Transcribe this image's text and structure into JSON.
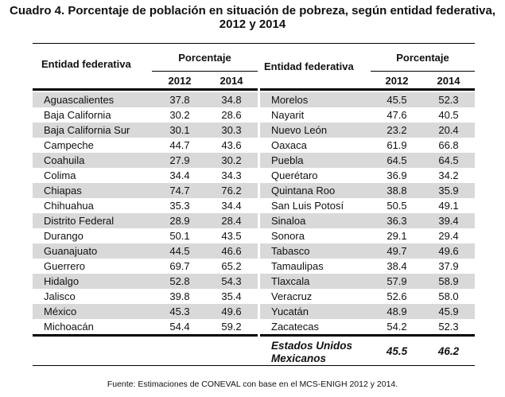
{
  "title": {
    "line1": "Cuadro 4. Porcentaje de población en situación de pobreza, según entidad federativa,",
    "line2": "2012 y 2014"
  },
  "headers": {
    "entity": "Entidad federativa",
    "group": "Porcentaje",
    "year1": "2012",
    "year2": "2014"
  },
  "left_rows": [
    {
      "entity": "Aguascalientes",
      "y2012": "37.8",
      "y2014": "34.8"
    },
    {
      "entity": "Baja California",
      "y2012": "30.2",
      "y2014": "28.6"
    },
    {
      "entity": "Baja California Sur",
      "y2012": "30.1",
      "y2014": "30.3"
    },
    {
      "entity": "Campeche",
      "y2012": "44.7",
      "y2014": "43.6"
    },
    {
      "entity": "Coahuila",
      "y2012": "27.9",
      "y2014": "30.2"
    },
    {
      "entity": "Colima",
      "y2012": "34.4",
      "y2014": "34.3"
    },
    {
      "entity": "Chiapas",
      "y2012": "74.7",
      "y2014": "76.2"
    },
    {
      "entity": "Chihuahua",
      "y2012": "35.3",
      "y2014": "34.4"
    },
    {
      "entity": "Distrito Federal",
      "y2012": "28.9",
      "y2014": "28.4"
    },
    {
      "entity": "Durango",
      "y2012": "50.1",
      "y2014": "43.5"
    },
    {
      "entity": "Guanajuato",
      "y2012": "44.5",
      "y2014": "46.6"
    },
    {
      "entity": "Guerrero",
      "y2012": "69.7",
      "y2014": "65.2"
    },
    {
      "entity": "Hidalgo",
      "y2012": "52.8",
      "y2014": "54.3"
    },
    {
      "entity": "Jalisco",
      "y2012": "39.8",
      "y2014": "35.4"
    },
    {
      "entity": "México",
      "y2012": "45.3",
      "y2014": "49.6"
    },
    {
      "entity": "Michoacán",
      "y2012": "54.4",
      "y2014": "59.2"
    }
  ],
  "right_rows": [
    {
      "entity": "Morelos",
      "y2012": "45.5",
      "y2014": "52.3"
    },
    {
      "entity": "Nayarit",
      "y2012": "47.6",
      "y2014": "40.5"
    },
    {
      "entity": "Nuevo León",
      "y2012": "23.2",
      "y2014": "20.4"
    },
    {
      "entity": "Oaxaca",
      "y2012": "61.9",
      "y2014": "66.8"
    },
    {
      "entity": "Puebla",
      "y2012": "64.5",
      "y2014": "64.5"
    },
    {
      "entity": "Querétaro",
      "y2012": "36.9",
      "y2014": "34.2"
    },
    {
      "entity": "Quintana Roo",
      "y2012": "38.8",
      "y2014": "35.9"
    },
    {
      "entity": "San Luis Potosí",
      "y2012": "50.5",
      "y2014": "49.1"
    },
    {
      "entity": "Sinaloa",
      "y2012": "36.3",
      "y2014": "39.4"
    },
    {
      "entity": "Sonora",
      "y2012": "29.1",
      "y2014": "29.4"
    },
    {
      "entity": "Tabasco",
      "y2012": "49.7",
      "y2014": "49.6"
    },
    {
      "entity": "Tamaulipas",
      "y2012": "38.4",
      "y2014": "37.9"
    },
    {
      "entity": "Tlaxcala",
      "y2012": "57.9",
      "y2014": "58.9"
    },
    {
      "entity": "Veracruz",
      "y2012": "52.6",
      "y2014": "58.0"
    },
    {
      "entity": "Yucatán",
      "y2012": "48.9",
      "y2014": "45.9"
    },
    {
      "entity": "Zacatecas",
      "y2012": "54.2",
      "y2014": "52.3"
    }
  ],
  "total": {
    "line1": "Estados Unidos",
    "line2": "Mexicanos",
    "y2012": "45.5",
    "y2014": "46.2"
  },
  "source": "Fuente: Estimaciones de CONEVAL con base en el MCS-ENIGH 2012 y 2014.",
  "colors": {
    "row_shade": "#d9d9d9",
    "rule": "#000000"
  }
}
